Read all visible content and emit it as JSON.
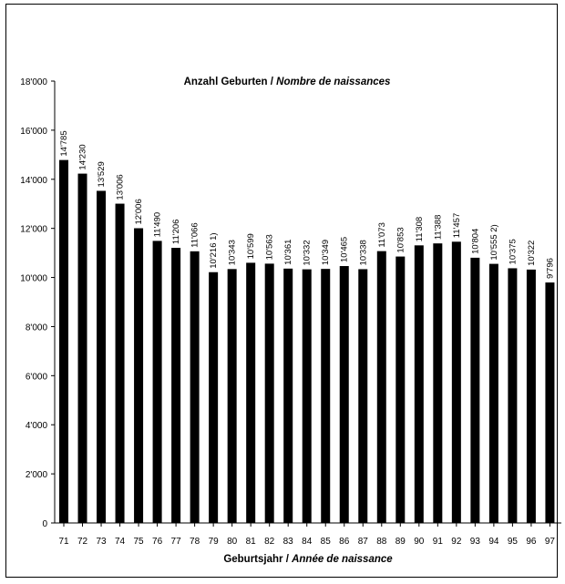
{
  "chart_data": {
    "type": "bar",
    "title": "Anzahl Geburten / ",
    "title_italic": "Nombre de naissances",
    "xlabel": "Geburtsjahr / ",
    "xlabel_italic": "Année de naissance",
    "ylabel": "",
    "ylim": [
      0,
      18000
    ],
    "yticks": [
      "0",
      "2'000",
      "4'000",
      "6'000",
      "8'000",
      "10'000",
      "12'000",
      "14'000",
      "16'000",
      "18'000"
    ],
    "categories": [
      "71",
      "72",
      "73",
      "74",
      "75",
      "76",
      "77",
      "78",
      "79",
      "80",
      "81",
      "82",
      "83",
      "84",
      "85",
      "86",
      "87",
      "88",
      "89",
      "90",
      "91",
      "92",
      "93",
      "94",
      "95",
      "96",
      "97"
    ],
    "values": [
      14785,
      14230,
      13529,
      13006,
      12006,
      11490,
      11206,
      11066,
      10216,
      10343,
      10599,
      10563,
      10361,
      10332,
      10349,
      10465,
      10338,
      11073,
      10853,
      11308,
      11388,
      11457,
      10804,
      10555,
      10375,
      10322,
      9796
    ],
    "labels": [
      "14'785",
      "14'230",
      "13'529",
      "13'006",
      "12'006",
      "11'490",
      "11'206",
      "11'066",
      "10'216  1)",
      "10'343",
      "10'599",
      "10'563",
      "10'361",
      "10'332",
      "10'349",
      "10'465",
      "10'338",
      "11'073",
      "10'853",
      "11'308",
      "11'388",
      "11'457",
      "10'804",
      "10'555  2)",
      "10'375",
      "10'322",
      "9'796"
    ],
    "grid": false,
    "legend": "none",
    "bar_color": "#000000"
  }
}
